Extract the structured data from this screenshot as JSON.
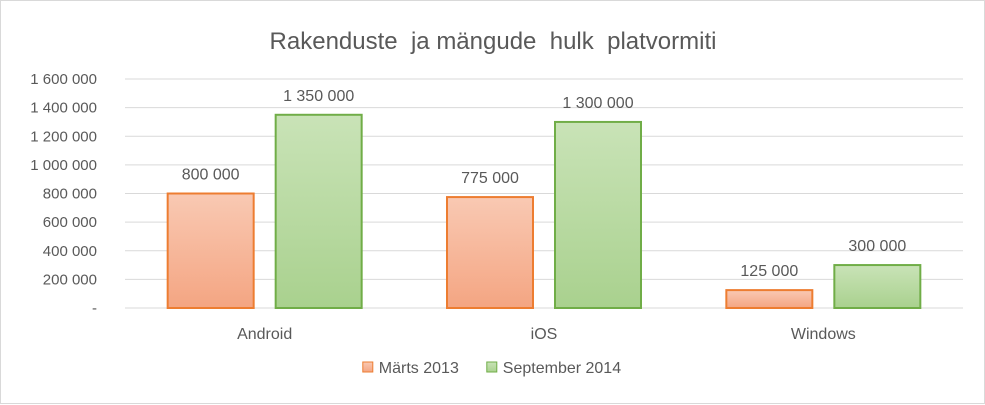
{
  "chart_data": {
    "type": "bar",
    "title": "Rakenduste  ja mängude  hulk  platvormiti",
    "categories": [
      "Android",
      "iOS",
      "Windows"
    ],
    "series": [
      {
        "name": "Märts 2013",
        "values": [
          800000,
          775000,
          125000
        ],
        "labels": [
          "800 000",
          "775 000",
          "125 000"
        ],
        "color": "#f4a582",
        "color_light": "#f9c9b3",
        "stroke": "#ed7d31"
      },
      {
        "name": "September 2014",
        "values": [
          1350000,
          1300000,
          300000
        ],
        "labels": [
          "1 350 000",
          "1 300 000",
          "300 000"
        ],
        "color": "#a9d18e",
        "color_light": "#c9e3b7",
        "stroke": "#70ad47"
      }
    ],
    "yticks": [
      0,
      200000,
      400000,
      600000,
      800000,
      1000000,
      1200000,
      1400000,
      1600000
    ],
    "ytick_labels": [
      "-",
      "200 000",
      "400 000",
      "600 000",
      "800 000",
      "1 000 000",
      "1 200 000",
      "1 400 000",
      "1 600 000"
    ],
    "ylim": [
      0,
      1600000
    ],
    "grid": true,
    "legend": "bottom"
  }
}
